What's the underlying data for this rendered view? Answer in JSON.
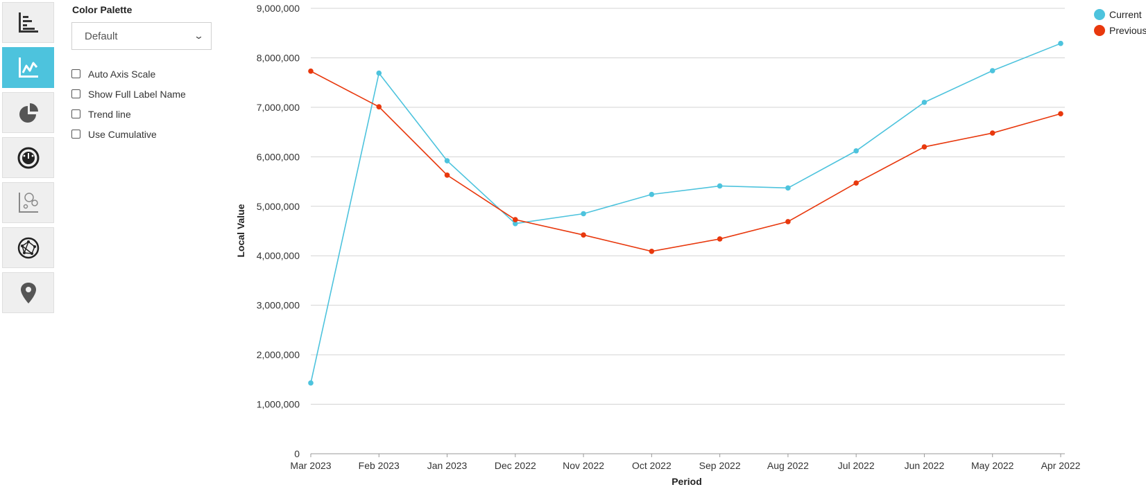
{
  "rail": {
    "items": [
      {
        "icon": "bar-chart-icon",
        "active": false
      },
      {
        "icon": "line-chart-icon",
        "active": true
      },
      {
        "icon": "pie-chart-icon",
        "active": false
      },
      {
        "icon": "gauge-icon",
        "active": false
      },
      {
        "icon": "bubble-chart-icon",
        "active": false
      },
      {
        "icon": "network-icon",
        "active": false
      },
      {
        "icon": "map-pin-icon",
        "active": false
      }
    ],
    "active_color": "#4dc3dd"
  },
  "options": {
    "title": "Color Palette",
    "palette_value": "Default",
    "checkboxes": [
      {
        "label": "Auto Axis Scale",
        "checked": false
      },
      {
        "label": "Show Full Label Name",
        "checked": false
      },
      {
        "label": "Trend line",
        "checked": false
      },
      {
        "label": "Use Cumulative",
        "checked": false
      }
    ]
  },
  "chart_data": {
    "type": "line",
    "xlabel": "Period",
    "ylabel": "Local Value",
    "ylim": [
      0,
      9000000
    ],
    "y_ticks": [
      "0",
      "1,000,000",
      "2,000,000",
      "3,000,000",
      "4,000,000",
      "5,000,000",
      "6,000,000",
      "7,000,000",
      "8,000,000",
      "9,000,000"
    ],
    "grid": true,
    "legend_position": "top-right",
    "categories": [
      "Mar 2023",
      "Feb 2023",
      "Jan 2023",
      "Dec 2022",
      "Nov 2022",
      "Oct 2022",
      "Sep 2022",
      "Aug 2022",
      "Jul 2022",
      "Jun 2022",
      "May 2022",
      "Apr 2022"
    ],
    "series": [
      {
        "name": "Current",
        "color": "#4dc3dd",
        "values": [
          1430000,
          7690000,
          5920000,
          4650000,
          4850000,
          5240000,
          5410000,
          5370000,
          6120000,
          7100000,
          7740000,
          8290000
        ]
      },
      {
        "name": "Previous",
        "color": "#e8380d",
        "values": [
          7730000,
          7010000,
          5630000,
          4730000,
          4420000,
          4090000,
          4340000,
          4690000,
          5470000,
          6200000,
          6480000,
          6870000
        ]
      }
    ]
  }
}
